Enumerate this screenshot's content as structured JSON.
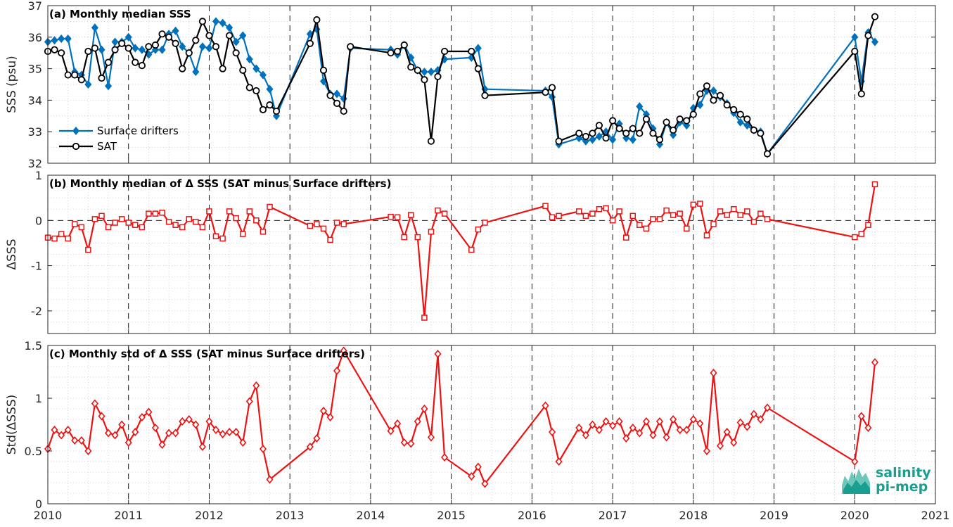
{
  "chart_data": [
    {
      "type": "line",
      "panel_label": "(a) Monthly median SSS",
      "xlabel": "",
      "ylabel": "SSS (psu)",
      "xlim": [
        2010,
        2021
      ],
      "ylim": [
        32,
        37
      ],
      "yticks": [
        32,
        33,
        34,
        35,
        36,
        37
      ],
      "grid": true,
      "legend_position": "bottom-left",
      "series": [
        {
          "name": "Surface drifters",
          "color": "#0072BD",
          "marker": "diamond",
          "x": [
            2010.0,
            2010.083,
            2010.167,
            2010.25,
            2010.333,
            2010.417,
            2010.5,
            2010.583,
            2010.667,
            2010.75,
            2010.833,
            2010.917,
            2011.0,
            2011.083,
            2011.167,
            2011.25,
            2011.333,
            2011.417,
            2011.5,
            2011.583,
            2011.667,
            2011.75,
            2011.833,
            2011.917,
            2012.0,
            2012.083,
            2012.167,
            2012.25,
            2012.333,
            2012.417,
            2012.5,
            2012.583,
            2012.667,
            2012.75,
            2012.833,
            2013.25,
            2013.333,
            2013.417,
            2013.5,
            2013.583,
            2013.667,
            2013.75,
            2014.25,
            2014.333,
            2014.417,
            2014.5,
            2014.583,
            2014.667,
            2014.75,
            2014.833,
            2014.917,
            2015.25,
            2015.333,
            2015.417,
            2016.167,
            2016.25,
            2016.333,
            2016.583,
            2016.667,
            2016.75,
            2016.833,
            2016.917,
            2017.0,
            2017.083,
            2017.167,
            2017.25,
            2017.333,
            2017.417,
            2017.5,
            2017.583,
            2017.667,
            2017.75,
            2017.833,
            2017.917,
            2018.0,
            2018.083,
            2018.167,
            2018.25,
            2018.333,
            2018.417,
            2018.5,
            2018.583,
            2018.667,
            2018.75,
            2018.833,
            2018.917,
            2020.0,
            2020.083,
            2020.167,
            2020.25
          ],
          "y": [
            35.85,
            35.9,
            35.95,
            35.95,
            34.9,
            34.8,
            34.5,
            36.3,
            35.6,
            34.45,
            35.85,
            35.85,
            36.0,
            35.65,
            35.6,
            35.45,
            35.6,
            35.6,
            36.1,
            36.2,
            35.7,
            35.5,
            34.9,
            35.7,
            35.65,
            36.5,
            36.45,
            36.3,
            35.85,
            36.05,
            35.3,
            35.0,
            34.8,
            34.35,
            33.5,
            36.1,
            36.25,
            34.6,
            34.2,
            34.2,
            34.05,
            35.65,
            35.6,
            35.45,
            35.75,
            35.35,
            34.95,
            34.9,
            34.9,
            34.95,
            35.3,
            35.35,
            35.65,
            34.35,
            34.3,
            34.1,
            32.6,
            32.8,
            32.7,
            32.75,
            32.85,
            33.0,
            32.75,
            33.25,
            32.8,
            32.75,
            33.8,
            33.55,
            33.1,
            32.6,
            33.3,
            32.9,
            33.3,
            33.2,
            33.75,
            33.85,
            34.3,
            34.3,
            34.1,
            33.9,
            33.6,
            33.3,
            33.2,
            33.05,
            33.0,
            32.3,
            36.0,
            34.6,
            36.15,
            35.85
          ]
        },
        {
          "name": "SAT",
          "color": "#000000",
          "marker": "circle",
          "x": [
            2010.0,
            2010.083,
            2010.167,
            2010.25,
            2010.333,
            2010.417,
            2010.5,
            2010.583,
            2010.667,
            2010.75,
            2010.833,
            2010.917,
            2011.0,
            2011.083,
            2011.167,
            2011.25,
            2011.333,
            2011.417,
            2011.5,
            2011.583,
            2011.667,
            2011.75,
            2011.833,
            2011.917,
            2012.0,
            2012.083,
            2012.167,
            2012.25,
            2012.333,
            2012.417,
            2012.5,
            2012.583,
            2012.667,
            2012.75,
            2012.833,
            2013.25,
            2013.333,
            2013.417,
            2013.5,
            2013.583,
            2013.667,
            2013.75,
            2014.25,
            2014.333,
            2014.417,
            2014.5,
            2014.583,
            2014.667,
            2014.75,
            2014.833,
            2014.917,
            2015.25,
            2015.333,
            2015.417,
            2016.167,
            2016.25,
            2016.333,
            2016.583,
            2016.667,
            2016.75,
            2016.833,
            2016.917,
            2017.0,
            2017.083,
            2017.167,
            2017.25,
            2017.333,
            2017.417,
            2017.5,
            2017.583,
            2017.667,
            2017.75,
            2017.833,
            2017.917,
            2018.0,
            2018.083,
            2018.167,
            2018.25,
            2018.333,
            2018.417,
            2018.5,
            2018.583,
            2018.667,
            2018.75,
            2018.833,
            2018.917,
            2020.0,
            2020.083,
            2020.167,
            2020.25
          ],
          "y": [
            35.55,
            35.6,
            35.5,
            34.8,
            34.8,
            34.65,
            35.55,
            35.65,
            34.7,
            35.2,
            35.6,
            35.8,
            35.65,
            35.2,
            35.1,
            35.7,
            35.75,
            36.1,
            36.0,
            35.8,
            35.0,
            35.5,
            35.9,
            36.5,
            36.05,
            35.7,
            35.0,
            36.05,
            35.5,
            34.95,
            34.4,
            34.3,
            33.7,
            33.85,
            33.65,
            35.8,
            36.55,
            34.95,
            34.15,
            33.9,
            33.65,
            35.7,
            35.5,
            35.55,
            35.75,
            35.05,
            34.95,
            34.65,
            32.7,
            34.75,
            35.55,
            35.55,
            35.0,
            34.15,
            34.25,
            34.4,
            32.7,
            32.95,
            32.85,
            32.95,
            33.2,
            32.8,
            33.35,
            33.1,
            32.95,
            33.1,
            32.95,
            33.4,
            32.95,
            32.75,
            33.3,
            33.05,
            33.4,
            33.35,
            33.55,
            34.2,
            34.45,
            34.0,
            34.15,
            33.85,
            33.7,
            33.55,
            33.4,
            33.05,
            32.95,
            32.3,
            35.55,
            34.2,
            36.05,
            36.65
          ]
        }
      ]
    },
    {
      "type": "line",
      "panel_label": "(b) Monthly median of Δ SSS (SAT minus Surface drifters)",
      "xlabel": "",
      "ylabel": "ΔSSS",
      "xlim": [
        2010,
        2021
      ],
      "ylim": [
        -2.5,
        1
      ],
      "yticks": [
        -2,
        -1,
        0,
        1
      ],
      "grid": true,
      "reference_line": 0,
      "series": [
        {
          "name": "",
          "color": "#EE1111",
          "marker": "square",
          "x": [
            2010.0,
            2010.083,
            2010.167,
            2010.25,
            2010.333,
            2010.417,
            2010.5,
            2010.583,
            2010.667,
            2010.75,
            2010.833,
            2010.917,
            2011.0,
            2011.083,
            2011.167,
            2011.25,
            2011.333,
            2011.417,
            2011.5,
            2011.583,
            2011.667,
            2011.75,
            2011.833,
            2011.917,
            2012.0,
            2012.083,
            2012.167,
            2012.25,
            2012.333,
            2012.417,
            2012.5,
            2012.583,
            2012.667,
            2012.75,
            2013.25,
            2013.333,
            2013.417,
            2013.5,
            2013.583,
            2013.667,
            2014.25,
            2014.333,
            2014.417,
            2014.5,
            2014.583,
            2014.667,
            2014.75,
            2014.833,
            2014.917,
            2015.25,
            2015.333,
            2015.417,
            2016.167,
            2016.25,
            2016.333,
            2016.583,
            2016.667,
            2016.75,
            2016.833,
            2016.917,
            2017.0,
            2017.083,
            2017.167,
            2017.25,
            2017.333,
            2017.417,
            2017.5,
            2017.583,
            2017.667,
            2017.75,
            2017.833,
            2017.917,
            2018.0,
            2018.083,
            2018.167,
            2018.25,
            2018.333,
            2018.417,
            2018.5,
            2018.583,
            2018.667,
            2018.75,
            2018.833,
            2018.917,
            2020.0,
            2020.083,
            2020.167,
            2020.25
          ],
          "y": [
            -0.38,
            -0.4,
            -0.3,
            -0.4,
            -0.08,
            -0.15,
            -0.65,
            0.03,
            0.1,
            -0.15,
            -0.05,
            0.03,
            -0.05,
            -0.1,
            -0.15,
            0.15,
            0.15,
            0.17,
            -0.03,
            -0.1,
            -0.15,
            0.03,
            -0.03,
            -0.15,
            0.2,
            -0.35,
            -0.4,
            0.2,
            0.05,
            -0.3,
            0.2,
            0.0,
            -0.25,
            0.3,
            -0.12,
            -0.08,
            -0.18,
            -0.43,
            -0.05,
            -0.08,
            0.08,
            0.07,
            -0.37,
            0.12,
            -0.37,
            -2.15,
            -0.25,
            0.22,
            0.15,
            -0.65,
            -0.2,
            -0.05,
            0.32,
            0.07,
            0.1,
            0.2,
            0.1,
            0.15,
            0.25,
            0.27,
            0.0,
            0.2,
            -0.38,
            0.1,
            -0.1,
            -0.18,
            0.03,
            0.03,
            0.22,
            0.12,
            0.15,
            -0.18,
            0.35,
            0.37,
            -0.33,
            -0.08,
            0.2,
            0.12,
            0.25,
            0.12,
            0.2,
            -0.03,
            0.15,
            0.03,
            -0.37,
            -0.3,
            -0.1,
            0.8
          ]
        }
      ]
    },
    {
      "type": "line",
      "panel_label": "(c) Monthly std of Δ SSS (SAT minus Surface drifters)",
      "xlabel": "",
      "ylabel": "Std(ΔSSS)",
      "xlim": [
        2010,
        2021
      ],
      "ylim": [
        0,
        1.5
      ],
      "yticks": [
        0,
        0.5,
        1,
        1.5
      ],
      "xticks": [
        2010,
        2011,
        2012,
        2013,
        2014,
        2015,
        2016,
        2017,
        2018,
        2019,
        2020,
        2021
      ],
      "grid": true,
      "series": [
        {
          "name": "",
          "color": "#EE1111",
          "marker": "diamond",
          "x": [
            2010.0,
            2010.083,
            2010.167,
            2010.25,
            2010.333,
            2010.417,
            2010.5,
            2010.583,
            2010.667,
            2010.75,
            2010.833,
            2010.917,
            2011.0,
            2011.083,
            2011.167,
            2011.25,
            2011.333,
            2011.417,
            2011.5,
            2011.583,
            2011.667,
            2011.75,
            2011.833,
            2011.917,
            2012.0,
            2012.083,
            2012.167,
            2012.25,
            2012.333,
            2012.417,
            2012.5,
            2012.583,
            2012.667,
            2012.75,
            2013.25,
            2013.333,
            2013.417,
            2013.5,
            2013.583,
            2013.667,
            2014.25,
            2014.333,
            2014.417,
            2014.5,
            2014.583,
            2014.667,
            2014.75,
            2014.833,
            2014.917,
            2015.25,
            2015.333,
            2015.417,
            2016.167,
            2016.25,
            2016.333,
            2016.583,
            2016.667,
            2016.75,
            2016.833,
            2016.917,
            2017.0,
            2017.083,
            2017.167,
            2017.25,
            2017.333,
            2017.417,
            2017.5,
            2017.583,
            2017.667,
            2017.75,
            2017.833,
            2017.917,
            2018.0,
            2018.083,
            2018.167,
            2018.25,
            2018.333,
            2018.417,
            2018.5,
            2018.583,
            2018.667,
            2018.75,
            2018.833,
            2018.917,
            2020.0,
            2020.083,
            2020.167,
            2020.25
          ],
          "y": [
            0.52,
            0.7,
            0.65,
            0.7,
            0.6,
            0.6,
            0.5,
            0.95,
            0.83,
            0.67,
            0.65,
            0.75,
            0.58,
            0.68,
            0.82,
            0.87,
            0.72,
            0.56,
            0.67,
            0.67,
            0.78,
            0.8,
            0.75,
            0.54,
            0.78,
            0.7,
            0.66,
            0.68,
            0.68,
            0.58,
            0.97,
            1.12,
            0.52,
            0.23,
            0.54,
            0.62,
            0.88,
            0.82,
            1.26,
            1.45,
            0.69,
            0.76,
            0.58,
            0.57,
            0.78,
            0.9,
            0.63,
            1.42,
            0.44,
            0.26,
            0.35,
            0.19,
            0.93,
            0.68,
            0.4,
            0.72,
            0.65,
            0.75,
            0.7,
            0.78,
            0.74,
            0.78,
            0.62,
            0.72,
            0.67,
            0.78,
            0.65,
            0.78,
            0.63,
            0.8,
            0.7,
            0.7,
            0.8,
            0.76,
            0.5,
            1.24,
            0.55,
            0.68,
            0.58,
            0.77,
            0.73,
            0.85,
            0.8,
            0.91,
            0.4,
            0.83,
            0.72,
            1.34
          ]
        }
      ]
    }
  ],
  "logo": {
    "line1": "salinity",
    "line2": "pi-mep",
    "color": "#1a9e8f"
  }
}
